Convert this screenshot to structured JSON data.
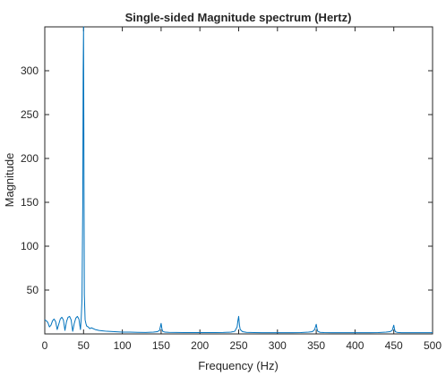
{
  "chart_data": {
    "type": "line",
    "title": "Single-sided Magnitude spectrum (Hertz)",
    "xlabel": "Frequency (Hz)",
    "ylabel": "Magnitude",
    "xlim": [
      0,
      500
    ],
    "ylim": [
      0,
      350
    ],
    "xticks": [
      0,
      50,
      100,
      150,
      200,
      250,
      300,
      350,
      400,
      450,
      500
    ],
    "yticks": [
      50,
      100,
      150,
      200,
      250,
      300
    ],
    "grid": false,
    "line_color": "#0072BD",
    "series": [
      {
        "x": [
          0,
          2,
          4,
          6,
          8,
          10,
          12,
          14,
          16,
          18,
          20,
          22,
          24,
          26,
          28,
          30,
          32,
          34,
          36,
          38,
          40,
          42,
          44,
          46,
          47,
          48,
          49,
          49.5,
          50,
          50.5,
          51,
          52,
          53,
          54,
          56,
          58,
          60,
          65,
          70,
          75,
          80,
          90,
          100,
          110,
          120,
          130,
          140,
          145,
          148,
          149,
          150,
          151,
          152,
          155,
          160,
          170,
          180,
          190,
          200,
          210,
          220,
          230,
          240,
          245,
          248,
          249,
          250,
          251,
          252,
          255,
          260,
          270,
          280,
          290,
          300,
          310,
          320,
          330,
          340,
          345,
          348,
          349,
          350,
          351,
          352,
          355,
          360,
          370,
          380,
          390,
          400,
          410,
          420,
          430,
          440,
          445,
          448,
          449,
          450,
          451,
          452,
          455,
          460,
          470,
          480,
          490,
          500
        ],
        "y": [
          16,
          15,
          13,
          8,
          10,
          15,
          17,
          14,
          5,
          11,
          17,
          19,
          16,
          4,
          14,
          19,
          20,
          16,
          3,
          12,
          18,
          20,
          17,
          5,
          18,
          40,
          150,
          300,
          350,
          200,
          45,
          16,
          12,
          9,
          8,
          6,
          7,
          5,
          4,
          3.5,
          3,
          2.5,
          2,
          2,
          1.8,
          1.7,
          2,
          2.5,
          4,
          8,
          12,
          6,
          3,
          2,
          1.8,
          1.6,
          1.5,
          1.5,
          1.5,
          1.5,
          1.5,
          1.6,
          2,
          3,
          8,
          15,
          20,
          10,
          5,
          2.5,
          1.8,
          1.5,
          1.4,
          1.4,
          1.4,
          1.4,
          1.4,
          1.5,
          2,
          2.5,
          5,
          8,
          11,
          6,
          3,
          1.8,
          1.5,
          1.4,
          1.4,
          1.4,
          1.4,
          1.4,
          1.4,
          1.5,
          2,
          2.5,
          4,
          7,
          10,
          5,
          2.5,
          1.6,
          1.4,
          1.4,
          1.4,
          1.4,
          1.4
        ]
      }
    ]
  }
}
